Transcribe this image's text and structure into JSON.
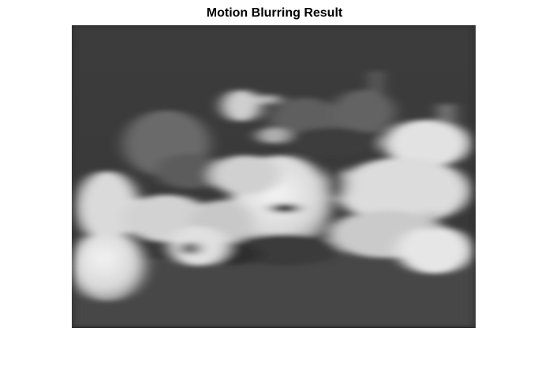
{
  "figure": {
    "title": "Motion Blurring Result"
  },
  "image": {
    "subject": "grayscale photo of peppers and garlic, motion blurred",
    "colormap": "gray"
  }
}
